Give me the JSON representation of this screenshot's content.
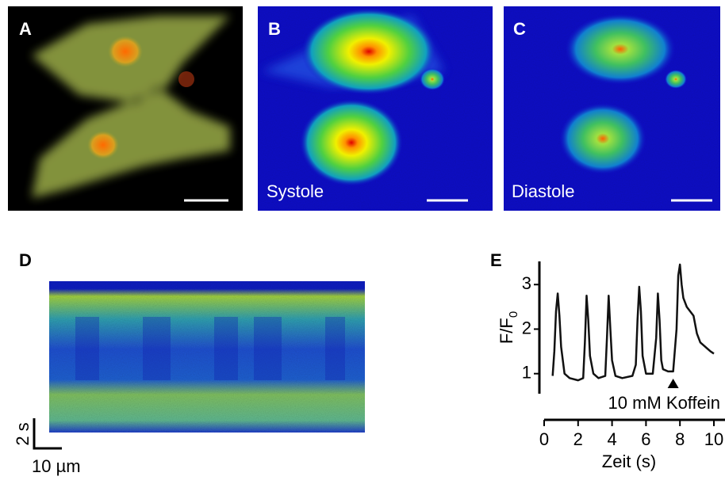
{
  "panels": [
    {
      "label": "A"
    },
    {
      "label": "B",
      "caption": "Systole"
    },
    {
      "label": "C",
      "caption": "Diastole"
    },
    {
      "label": "D"
    }
  ],
  "scale_bars": {
    "time": "2 s",
    "distance": "10 µm"
  },
  "chart_data": {
    "type": "line",
    "label": "E",
    "y_label": {
      "text": "F/F",
      "subscript": "0"
    },
    "x_label": "Zeit (s)",
    "annotation": {
      "text": "10 mM Koffein",
      "x": 7.6
    },
    "color": "#111111",
    "x": [
      0.5,
      0.6,
      0.7,
      0.8,
      0.9,
      1.0,
      1.2,
      1.5,
      2.0,
      2.3,
      2.4,
      2.5,
      2.6,
      2.7,
      2.9,
      3.2,
      3.6,
      3.7,
      3.8,
      3.9,
      4.0,
      4.2,
      4.6,
      5.2,
      5.4,
      5.5,
      5.6,
      5.7,
      5.8,
      6.0,
      6.4,
      6.6,
      6.7,
      6.8,
      6.9,
      7.0,
      7.3,
      7.6,
      7.8,
      7.9,
      8.0,
      8.1,
      8.2,
      8.4,
      8.6,
      8.8,
      9.0,
      9.2,
      9.5,
      9.8,
      10.0
    ],
    "values": [
      0.95,
      1.5,
      2.4,
      2.8,
      2.3,
      1.6,
      1.0,
      0.9,
      0.85,
      0.9,
      1.7,
      2.75,
      2.2,
      1.4,
      1.0,
      0.9,
      0.95,
      1.8,
      2.75,
      2.0,
      1.3,
      0.95,
      0.9,
      0.95,
      1.2,
      2.2,
      2.95,
      2.4,
      1.4,
      1.0,
      1.0,
      1.8,
      2.8,
      2.2,
      1.3,
      1.1,
      1.05,
      1.05,
      2.0,
      3.2,
      3.45,
      3.0,
      2.7,
      2.5,
      2.4,
      2.3,
      1.9,
      1.7,
      1.6,
      1.5,
      1.45
    ],
    "xlim": [
      0,
      10
    ],
    "ylim": [
      0.55,
      3.52
    ],
    "xticks": [
      0,
      2,
      4,
      6,
      8,
      10
    ],
    "yticks": [
      1,
      2,
      3
    ]
  }
}
